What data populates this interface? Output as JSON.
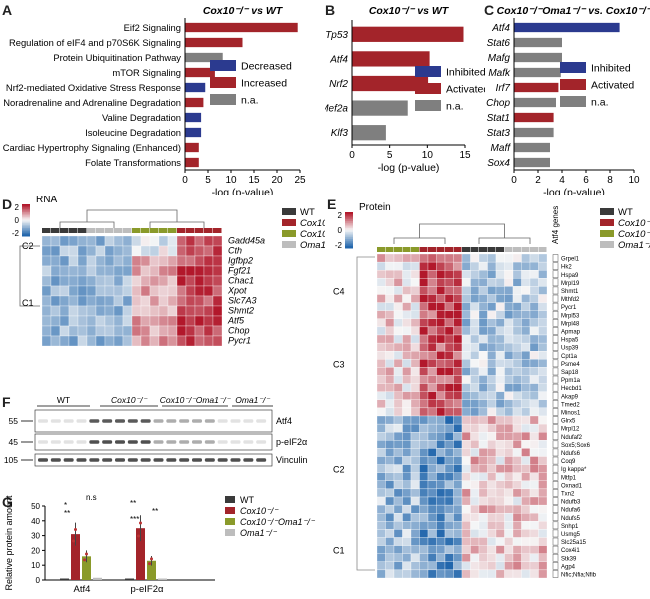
{
  "panels": {
    "A": "A",
    "B": "B",
    "C": "C",
    "D": "D",
    "E": "E",
    "F": "F",
    "G": "G"
  },
  "colors": {
    "decreased": "#2b3a8f",
    "increased": "#a3242a",
    "na": "#7f7f7f",
    "wt": "#3a3a3a",
    "cox10": "#a3242a",
    "cox10_oma1": "#8a9a2a",
    "oma1": "#bdbdbd"
  },
  "legends": {
    "panelA": [
      "Decreased",
      "Increased",
      "n.a."
    ],
    "panelB": [
      "Inhibited",
      "Activated",
      "n.a."
    ],
    "panelC": [
      "Inhibited",
      "Activated",
      "n.a."
    ],
    "genotypes": [
      "WT",
      "Cox10⁻/⁻",
      "Cox10⁻/⁻Oma1⁻/⁻",
      "Oma1⁻/⁻"
    ]
  },
  "chart_data": [
    {
      "panel": "A",
      "type": "bar",
      "title": "Cox10⁻/⁻ vs WT",
      "xlabel": "-log (p-value)",
      "xlim": [
        0,
        25
      ],
      "xticks": [
        0,
        5,
        10,
        15,
        20,
        25
      ],
      "categories": [
        "Eif2 Signaling",
        "Regulation of eIF4 and p70S6K Signaling",
        "Protein Ubiquitination Pathway",
        "mTOR Signaling",
        "Nrf2-mediated Oxidative Stress Response",
        "Noradrenaline and Adrenaline Degradation",
        "Valine Degradation",
        "Isoleucine Degradation",
        "Cardiac Hypertrophy Signaling (Enhanced)",
        "Folate Transformations"
      ],
      "values": [
        24.5,
        12.5,
        8.2,
        6.5,
        4.4,
        4.0,
        3.5,
        3.5,
        3.0,
        3.0
      ],
      "status": [
        "increased",
        "increased",
        "na",
        "increased",
        "decreased",
        "increased",
        "decreased",
        "decreased",
        "increased",
        "increased"
      ]
    },
    {
      "panel": "B",
      "type": "bar",
      "title": "Cox10⁻/⁻ vs WT",
      "xlabel": "-log (p-value)",
      "xlim": [
        0,
        15
      ],
      "xticks": [
        0,
        5,
        10,
        15
      ],
      "categories": [
        "Tp53",
        "Atf4",
        "Nrf2",
        "Mef2a",
        "Klf3"
      ],
      "values": [
        14.8,
        10.3,
        10.1,
        7.4,
        4.5
      ],
      "status": [
        "increased",
        "increased",
        "increased",
        "na",
        "na"
      ]
    },
    {
      "panel": "C",
      "type": "bar",
      "title": "Cox10⁻/⁻Oma1⁻/⁻ vs. Cox10⁻/⁻",
      "xlabel": "-log (p-value)",
      "xlim": [
        0,
        10
      ],
      "xticks": [
        0,
        2,
        4,
        6,
        8,
        10
      ],
      "categories": [
        "Atf4",
        "Stat6",
        "Mafg",
        "Mafk",
        "Irf7",
        "Chop",
        "Stat1",
        "Stat3",
        "Maff",
        "Sox4"
      ],
      "values": [
        8.8,
        4.0,
        4.0,
        3.9,
        3.7,
        3.5,
        3.3,
        3.3,
        3.0,
        3.0
      ],
      "status": [
        "decreased",
        "na",
        "na",
        "na",
        "increased",
        "na",
        "increased",
        "na",
        "na",
        "na"
      ]
    },
    {
      "panel": "G",
      "type": "bar",
      "ylabel": "Relative protein amount",
      "ylim": [
        0,
        50
      ],
      "yticks": [
        0,
        10,
        20,
        30,
        40,
        50
      ],
      "categories": [
        "Atf4",
        "p-eIF2α"
      ],
      "series": [
        {
          "name": "WT",
          "values": [
            1,
            1
          ]
        },
        {
          "name": "Cox10⁻/⁻",
          "values": [
            31,
            35
          ]
        },
        {
          "name": "Cox10⁻/⁻Oma1⁻/⁻",
          "values": [
            16,
            13
          ]
        },
        {
          "name": "Oma1⁻/⁻",
          "values": [
            1.5,
            1
          ]
        }
      ],
      "significance": [
        "*",
        "n.s",
        "**",
        "**",
        "***",
        "**"
      ]
    }
  ],
  "panelD": {
    "title": "RNA",
    "scale": [
      "2",
      "0",
      "-2"
    ],
    "clusters": [
      "C2",
      "C1"
    ],
    "genes": [
      "Gadd45a",
      "Cth",
      "Igfbp2",
      "Fgf21",
      "Chac1",
      "Xpot",
      "Slc7A3",
      "Shmt2",
      "Atf5",
      "Chop",
      "Pycr1"
    ]
  },
  "panelE": {
    "title": "Protein",
    "scale": [
      "2",
      "0",
      "-2"
    ],
    "side_label": "Atf4 genes",
    "clusters": [
      "C4",
      "C3",
      "C2",
      "C1"
    ],
    "proteins": [
      "Grpel1",
      "Hk2",
      "Hspa9",
      "Mrpl19",
      "Shmt1",
      "Mthfd2",
      "Pycr1",
      "Mrpl53",
      "Mrpl48",
      "Apmap",
      "Hspa5",
      "Usp39",
      "Cpt1a",
      "Psme4",
      "Sap18",
      "Ppm1a",
      "Hecbd1",
      "Akap9",
      "Tmed2",
      "Minos1",
      "Glrx5",
      "Mrpl12",
      "Ndufaf2",
      "Sox5;Sox6",
      "Ndufs6",
      "Coq9",
      "Ig kappa*",
      "Mtfp1",
      "Oxnad1",
      "Txn2",
      "Ndufb3",
      "Ndufa6",
      "Ndufs5",
      "Snhp1",
      "Usmg5",
      "Slc25a15",
      "Cox4i1",
      "Stk39",
      "Agp4",
      "Nfic;Nfia;Nfib"
    ]
  },
  "panelF": {
    "groups": [
      "WT",
      "Cox10⁻/⁻",
      "Cox10⁻/⁻Oma1⁻/⁻",
      "Oma1⁻/⁻"
    ],
    "markers": [
      "55",
      "45",
      "105"
    ],
    "bands": [
      "Atf4",
      "p-eIF2α",
      "Vinculin"
    ]
  }
}
